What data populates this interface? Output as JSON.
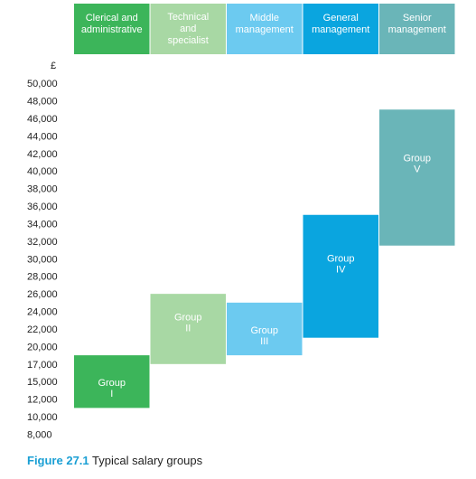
{
  "chart_data": {
    "type": "bar",
    "y_unit_label": "£",
    "y_tick_labels": [
      "8,000",
      "10,000",
      "12,000",
      "15,000",
      "17,000",
      "20,000",
      "22,000",
      "24,000",
      "26,000",
      "28,000",
      "30,000",
      "32,000",
      "34,000",
      "36,000",
      "38,000",
      "40,000",
      "42,000",
      "44,000",
      "46,000",
      "48,000",
      "50,000"
    ],
    "categories": [
      {
        "header": [
          "Clerical and",
          "administrative"
        ],
        "color": "#3cb55a",
        "header_color": "#3cb55a",
        "text_color": "#ffffff"
      },
      {
        "header": [
          "Technical",
          "and",
          "specialist"
        ],
        "color": "#a8d8a4",
        "header_color": "#a8d8a4",
        "text_color": "#ffffff"
      },
      {
        "header": [
          "Middle",
          "management"
        ],
        "color": "#6ccaf0",
        "header_color": "#6ccaf0",
        "text_color": "#ffffff"
      },
      {
        "header": [
          "General",
          "management"
        ],
        "color": "#0aa5df",
        "header_color": "#0aa5df",
        "text_color": "#ffffff"
      },
      {
        "header": [
          "Senior",
          "management"
        ],
        "color": "#6ab5b8",
        "header_color": "#6ab5b8",
        "text_color": "#ffffff"
      }
    ],
    "groups": [
      {
        "label": [
          "Group",
          "I"
        ],
        "min_tick": 8000,
        "max_tick": 15000,
        "low_index": 1.5,
        "high_index": 4.5
      },
      {
        "label": [
          "Group",
          "II"
        ],
        "min_tick": 15000,
        "max_tick": 24000,
        "low_index": 4.0,
        "high_index": 8.0
      },
      {
        "label": [
          "Group",
          "III"
        ],
        "min_tick": 17000,
        "max_tick": 24000,
        "low_index": 4.5,
        "high_index": 7.5
      },
      {
        "label": [
          "Group",
          "IV"
        ],
        "min_tick": 20000,
        "max_tick": 34000,
        "low_index": 5.5,
        "high_index": 12.5
      },
      {
        "label": [
          "Group",
          "V"
        ],
        "min_tick": 30000,
        "max_tick": 46000,
        "low_index": 10.75,
        "high_index": 18.5
      }
    ],
    "caption": {
      "figure": "Figure 27.1",
      "text": "Typical salary groups"
    }
  }
}
